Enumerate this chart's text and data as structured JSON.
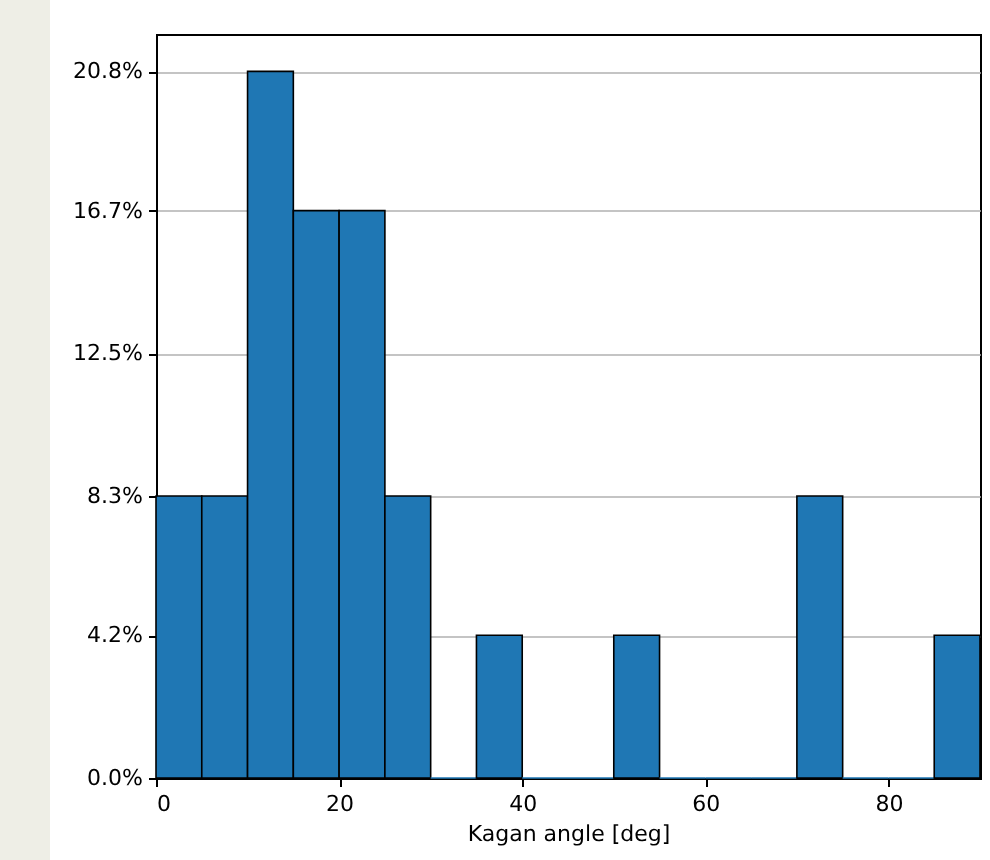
{
  "chart_data": {
    "type": "histogram",
    "xlabel": "Kagan angle [deg]",
    "bins": [
      0,
      5,
      10,
      15,
      20,
      25,
      30,
      35,
      40,
      45,
      50,
      55,
      60,
      65,
      70,
      75,
      80,
      85,
      90
    ],
    "values": [
      8.3,
      8.3,
      20.8,
      16.7,
      16.7,
      8.3,
      0,
      4.2,
      0,
      0,
      4.2,
      0,
      0,
      0,
      8.3,
      0,
      0,
      4.2
    ],
    "color": "#1f77b4",
    "xlim": [
      0,
      90
    ],
    "xticks": [
      0,
      20,
      40,
      60,
      80
    ],
    "ylim": [
      0,
      21.9
    ],
    "yticks": [
      {
        "value": 0,
        "label": "0.0%"
      },
      {
        "value": 4.2,
        "label": "4.2%"
      },
      {
        "value": 8.3,
        "label": "8.3%"
      },
      {
        "value": 12.5,
        "label": "12.5%"
      },
      {
        "value": 16.7,
        "label": "16.7%"
      },
      {
        "value": 20.8,
        "label": "20.8%"
      }
    ],
    "grid": "y"
  }
}
